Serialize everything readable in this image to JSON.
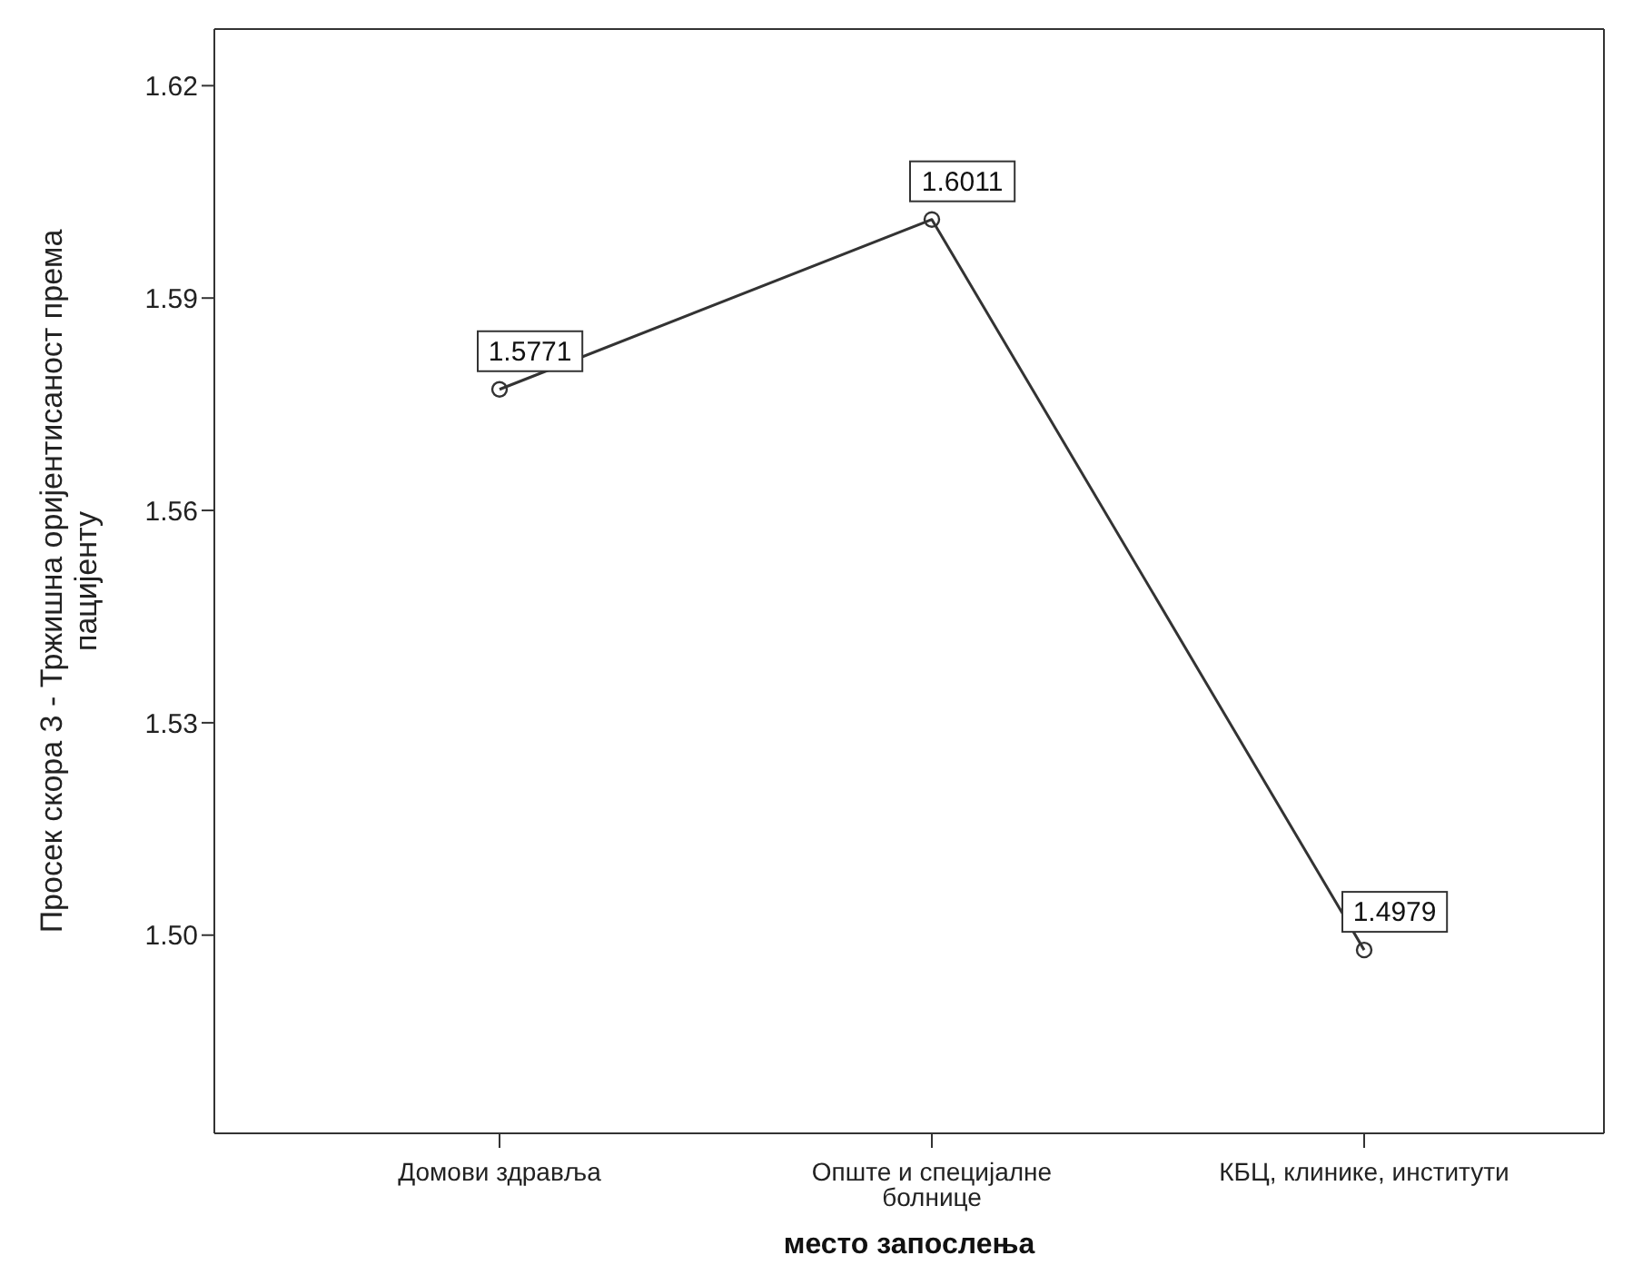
{
  "chart_data": {
    "type": "line",
    "xlabel": "место запослења",
    "ylabel": "Просек скора 3 - Тржишна оријентисаност према пацијенту",
    "categories": [
      "Домови здравља",
      "Опште и специјалне болнице",
      "КБЦ, клинике, институти"
    ],
    "series": [
      {
        "color": "#333333",
        "values": [
          1.5771,
          1.6011,
          1.4979
        ]
      }
    ],
    "ylim": [
      1.472,
      1.628
    ],
    "yticks": [
      {
        "value": 1.5,
        "label": "1.50"
      },
      {
        "value": 1.53,
        "label": "1.53"
      },
      {
        "value": 1.56,
        "label": "1.56"
      },
      {
        "value": 1.59,
        "label": "1.59"
      },
      {
        "value": 1.62,
        "label": "1.62"
      }
    ],
    "data_labels": true,
    "marker": "circle",
    "line_style": "solid",
    "grid": false,
    "legend": false
  }
}
